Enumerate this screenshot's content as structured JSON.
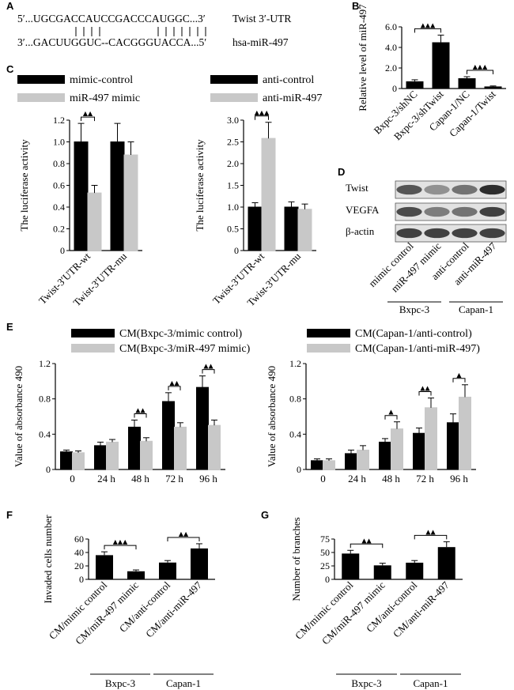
{
  "panel_letters": [
    "A",
    "B",
    "C",
    "D",
    "E",
    "F",
    "G"
  ],
  "panelA": {
    "seq_top": "5′...UGCGACCAUCCGACCCAUGGC...3′",
    "seq_top_label": "Twist 3′-UTR",
    "pairs": "| | | |              | | | | | | |",
    "seq_bottom": "3′...GACUUGGUC--CACGGGUACCA...5′",
    "seq_bottom_label": "hsa-miR-497"
  },
  "panelD": {
    "rows": [
      "Twist",
      "VEGFA",
      "β-actin"
    ],
    "lanes": [
      "mimic control",
      "miR-497 mimic",
      "anti-control",
      "anti-miR-497"
    ],
    "groups": [
      "Bxpc-3",
      "Capan-1"
    ],
    "band_intensity": [
      [
        0.75,
        0.45,
        0.6,
        0.95
      ],
      [
        0.8,
        0.55,
        0.6,
        0.85
      ],
      [
        0.85,
        0.85,
        0.85,
        0.85
      ]
    ]
  },
  "chart_data": [
    {
      "id": "B",
      "type": "bar",
      "ylabel": "Relative level of miR-497",
      "ylim": [
        0,
        6
      ],
      "yticks": [
        "0",
        "2.0",
        "4.0",
        "6.0"
      ],
      "ytick_values": [
        0,
        2,
        4,
        6
      ],
      "categories": [
        "Bxpc-3/shNC",
        "Bxpc-3/shTwist",
        "Capan-1/NC",
        "Capan-1/Twist"
      ],
      "values": [
        0.7,
        4.5,
        1.0,
        0.2
      ],
      "errors": [
        0.15,
        0.7,
        0.15,
        0.05
      ],
      "significance": [
        {
          "from": 0,
          "to": 1,
          "label": "▲▲▲"
        },
        {
          "from": 2,
          "to": 3,
          "label": "▲▲▲"
        }
      ]
    },
    {
      "id": "C1",
      "type": "bar",
      "ylabel": "The luciferase activity",
      "ylim": [
        0,
        1.2
      ],
      "yticks": [
        "0",
        "0.2",
        "0.4",
        "0.6",
        "0.8",
        "1.0",
        "1.2"
      ],
      "ytick_values": [
        0,
        0.2,
        0.4,
        0.6,
        0.8,
        1.0,
        1.2
      ],
      "categories": [
        "Twist-3′UTR-wt",
        "Twist-3′UTR-mu"
      ],
      "series": [
        {
          "name": "mimic-control",
          "color": "#000000",
          "values": [
            1.0,
            1.0
          ],
          "errors": [
            0.17,
            0.17
          ]
        },
        {
          "name": "miR-497 mimic",
          "color": "#c8c8c8",
          "values": [
            0.53,
            0.88
          ],
          "errors": [
            0.07,
            0.12
          ]
        }
      ],
      "significance": [
        {
          "category": 0,
          "label": "▲▲"
        }
      ]
    },
    {
      "id": "C2",
      "type": "bar",
      "ylabel": "The luciferase activity",
      "ylim": [
        0,
        3.0
      ],
      "yticks": [
        "0",
        "0.5",
        "1.0",
        "1.5",
        "2.0",
        "2.5",
        "3.0"
      ],
      "ytick_values": [
        0,
        0.5,
        1.0,
        1.5,
        2.0,
        2.5,
        3.0
      ],
      "categories": [
        "Twist-3′UTR-wt",
        "Twist-3′UTR-mu"
      ],
      "series": [
        {
          "name": "anti-control",
          "color": "#000000",
          "values": [
            1.0,
            1.0
          ],
          "errors": [
            0.1,
            0.12
          ]
        },
        {
          "name": "anti-miR-497",
          "color": "#c8c8c8",
          "values": [
            2.58,
            0.95
          ],
          "errors": [
            0.37,
            0.12
          ]
        }
      ],
      "significance": [
        {
          "category": 0,
          "label": "▲▲▲"
        }
      ]
    },
    {
      "id": "E1",
      "type": "bar",
      "ylabel": "Value of absorbance 490",
      "ylim": [
        0,
        1.2
      ],
      "yticks": [
        "0",
        "0.4",
        "0.8",
        "1.2"
      ],
      "ytick_values": [
        0,
        0.4,
        0.8,
        1.2
      ],
      "categories": [
        "0",
        "24 h",
        "48 h",
        "72 h",
        "96 h"
      ],
      "series": [
        {
          "name": "CM(Bxpc-3/mimic control)",
          "color": "#000000",
          "values": [
            0.2,
            0.27,
            0.48,
            0.77,
            0.93
          ],
          "errors": [
            0.02,
            0.04,
            0.08,
            0.1,
            0.13
          ]
        },
        {
          "name": "CM(Bxpc-3/miR-497 mimic)",
          "color": "#c8c8c8",
          "values": [
            0.19,
            0.31,
            0.32,
            0.48,
            0.5
          ],
          "errors": [
            0.02,
            0.03,
            0.04,
            0.05,
            0.06
          ]
        }
      ],
      "significance": [
        {
          "category": 2,
          "label": "▲▲"
        },
        {
          "category": 3,
          "label": "▲▲"
        },
        {
          "category": 4,
          "label": "▲▲"
        }
      ]
    },
    {
      "id": "E2",
      "type": "bar",
      "ylabel": "Value of absorbance 490",
      "ylim": [
        0,
        1.2
      ],
      "yticks": [
        "0",
        "0.4",
        "0.8",
        "1.2"
      ],
      "ytick_values": [
        0,
        0.4,
        0.8,
        1.2
      ],
      "categories": [
        "0",
        "24 h",
        "48 h",
        "72 h",
        "96 h"
      ],
      "series": [
        {
          "name": "CM(Capan-1/anti-control)",
          "color": "#000000",
          "values": [
            0.1,
            0.18,
            0.31,
            0.41,
            0.53
          ],
          "errors": [
            0.02,
            0.04,
            0.04,
            0.06,
            0.1
          ]
        },
        {
          "name": "CM(Capan-1/anti-miR-497)",
          "color": "#c8c8c8",
          "values": [
            0.1,
            0.22,
            0.46,
            0.7,
            0.82
          ],
          "errors": [
            0.02,
            0.05,
            0.08,
            0.11,
            0.14
          ]
        }
      ],
      "significance": [
        {
          "category": 2,
          "label": "▲"
        },
        {
          "category": 3,
          "label": "▲▲"
        },
        {
          "category": 4,
          "label": "▲"
        }
      ]
    },
    {
      "id": "F",
      "type": "bar",
      "ylabel": "Invaded cells number",
      "ylim": [
        0,
        60
      ],
      "yticks": [
        "0",
        "20",
        "40",
        "60"
      ],
      "ytick_values": [
        0,
        20,
        40,
        60
      ],
      "categories": [
        "CM/mimic control",
        "CM/miR-497 mimic",
        "CM/anti-control",
        "CM/anti-miR-497"
      ],
      "values": [
        36,
        12,
        25,
        46
      ],
      "errors": [
        5,
        2,
        3,
        7
      ],
      "groups": [
        {
          "name": "Bxpc-3",
          "from": 0,
          "to": 1
        },
        {
          "name": "Capan-1",
          "from": 2,
          "to": 3
        }
      ],
      "significance": [
        {
          "from": 0,
          "to": 1,
          "label": "▲▲▲"
        },
        {
          "from": 2,
          "to": 3,
          "label": "▲▲"
        }
      ]
    },
    {
      "id": "G",
      "type": "bar",
      "ylabel": "Number of branches",
      "ylim": [
        0,
        75
      ],
      "yticks": [
        "0",
        "25",
        "50",
        "75"
      ],
      "ytick_values": [
        0,
        25,
        50,
        75
      ],
      "categories": [
        "CM/mimic control",
        "CM/miR-497 mimic",
        "CM/anti-control",
        "CM/anti-miR-497"
      ],
      "values": [
        48,
        26,
        31,
        60
      ],
      "errors": [
        6,
        4,
        4,
        10
      ],
      "groups": [
        {
          "name": "Bxpc-3",
          "from": 0,
          "to": 1
        },
        {
          "name": "Capan-1",
          "from": 2,
          "to": 3
        }
      ],
      "significance": [
        {
          "from": 0,
          "to": 1,
          "label": "▲▲"
        },
        {
          "from": 2,
          "to": 3,
          "label": "▲▲"
        }
      ]
    }
  ]
}
